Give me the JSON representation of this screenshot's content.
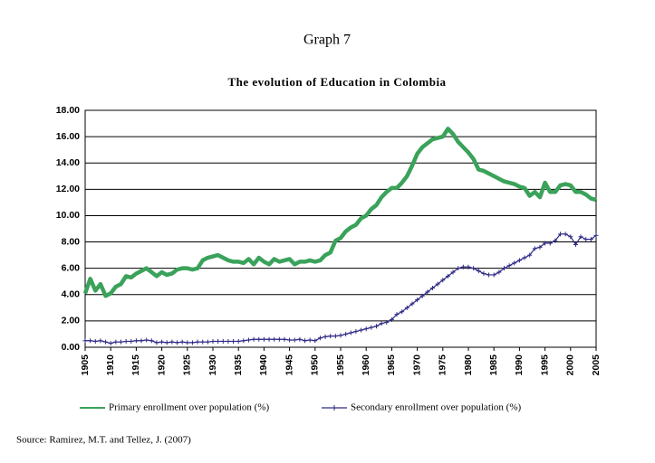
{
  "chart_data": {
    "type": "line",
    "heading": "Graph 7",
    "title": "The evolution of Education in Colombia",
    "source": "Source: Ramirez, M.T. and Tellez, J. (2007)",
    "x": [
      1905,
      1906,
      1907,
      1908,
      1909,
      1910,
      1911,
      1912,
      1913,
      1914,
      1915,
      1916,
      1917,
      1918,
      1919,
      1920,
      1921,
      1922,
      1923,
      1924,
      1925,
      1926,
      1927,
      1928,
      1929,
      1930,
      1931,
      1932,
      1933,
      1934,
      1935,
      1936,
      1937,
      1938,
      1939,
      1940,
      1941,
      1942,
      1943,
      1944,
      1945,
      1946,
      1947,
      1948,
      1949,
      1950,
      1951,
      1952,
      1953,
      1954,
      1955,
      1956,
      1957,
      1958,
      1959,
      1960,
      1961,
      1962,
      1963,
      1964,
      1965,
      1966,
      1967,
      1968,
      1969,
      1970,
      1971,
      1972,
      1973,
      1974,
      1975,
      1976,
      1977,
      1978,
      1979,
      1980,
      1981,
      1982,
      1983,
      1984,
      1985,
      1986,
      1987,
      1988,
      1989,
      1990,
      1991,
      1992,
      1993,
      1994,
      1995,
      1996,
      1997,
      1998,
      1999,
      2000,
      2001,
      2002,
      2003,
      2004,
      2005
    ],
    "series": [
      {
        "name": "Primary enrollment over population (%)",
        "color": "#3aa25a",
        "values": [
          4.1,
          5.2,
          4.3,
          4.8,
          3.9,
          4.1,
          4.6,
          4.8,
          5.4,
          5.3,
          5.6,
          5.8,
          6.0,
          5.7,
          5.4,
          5.7,
          5.5,
          5.6,
          5.9,
          6.0,
          6.0,
          5.9,
          6.0,
          6.6,
          6.8,
          6.9,
          7.0,
          6.8,
          6.6,
          6.5,
          6.5,
          6.4,
          6.7,
          6.3,
          6.8,
          6.5,
          6.3,
          6.7,
          6.5,
          6.6,
          6.7,
          6.3,
          6.5,
          6.5,
          6.6,
          6.5,
          6.6,
          7.0,
          7.2,
          8.1,
          8.3,
          8.8,
          9.1,
          9.3,
          9.8,
          10.0,
          10.5,
          10.8,
          11.4,
          11.8,
          12.1,
          12.1,
          12.5,
          13.0,
          13.8,
          14.7,
          15.2,
          15.5,
          15.8,
          15.9,
          16.0,
          16.6,
          16.2,
          15.6,
          15.2,
          14.8,
          14.3,
          13.5,
          13.4,
          13.2,
          13.0,
          12.8,
          12.6,
          12.5,
          12.4,
          12.2,
          12.1,
          11.5,
          11.8,
          11.4,
          12.5,
          11.8,
          11.8,
          12.3,
          12.4,
          12.3,
          11.8,
          11.8,
          11.6,
          11.3,
          11.2
        ]
      },
      {
        "name": "Secondary enrollment over population (%)",
        "color": "#2e2a86",
        "values": [
          0.5,
          0.5,
          0.45,
          0.5,
          0.4,
          0.3,
          0.4,
          0.4,
          0.45,
          0.45,
          0.5,
          0.5,
          0.55,
          0.5,
          0.35,
          0.4,
          0.35,
          0.4,
          0.35,
          0.4,
          0.35,
          0.35,
          0.4,
          0.4,
          0.4,
          0.45,
          0.45,
          0.45,
          0.45,
          0.45,
          0.45,
          0.5,
          0.55,
          0.6,
          0.6,
          0.6,
          0.6,
          0.6,
          0.6,
          0.6,
          0.55,
          0.55,
          0.6,
          0.5,
          0.55,
          0.5,
          0.7,
          0.8,
          0.85,
          0.85,
          0.9,
          1.0,
          1.1,
          1.2,
          1.3,
          1.4,
          1.5,
          1.6,
          1.8,
          1.9,
          2.1,
          2.5,
          2.7,
          3.0,
          3.3,
          3.6,
          3.9,
          4.2,
          4.5,
          4.8,
          5.1,
          5.4,
          5.7,
          6.0,
          6.1,
          6.1,
          6.0,
          5.8,
          5.6,
          5.5,
          5.5,
          5.7,
          6.0,
          6.2,
          6.4,
          6.6,
          6.8,
          7.0,
          7.5,
          7.6,
          7.9,
          7.9,
          8.1,
          8.6,
          8.6,
          8.4,
          7.8,
          8.4,
          8.2,
          8.2,
          8.5
        ]
      }
    ],
    "xlim": [
      1905,
      2005
    ],
    "xticks": [
      1905,
      1910,
      1915,
      1920,
      1925,
      1930,
      1935,
      1940,
      1945,
      1950,
      1955,
      1960,
      1965,
      1970,
      1975,
      1980,
      1985,
      1990,
      1995,
      2000,
      2005
    ],
    "ylim": [
      0,
      18
    ],
    "yticks": [
      {
        "value": 0,
        "label": "0.00"
      },
      {
        "value": 2,
        "label": "2.00"
      },
      {
        "value": 4,
        "label": "4.00"
      },
      {
        "value": 6,
        "label": "6.00"
      },
      {
        "value": 8,
        "label": "8.00"
      },
      {
        "value": 10,
        "label": "10.00"
      },
      {
        "value": 12,
        "label": "12.00"
      },
      {
        "value": 14,
        "label": "14.00"
      },
      {
        "value": 16,
        "label": "16.00"
      },
      {
        "value": 18,
        "label": "18.00"
      }
    ],
    "grid": true
  }
}
